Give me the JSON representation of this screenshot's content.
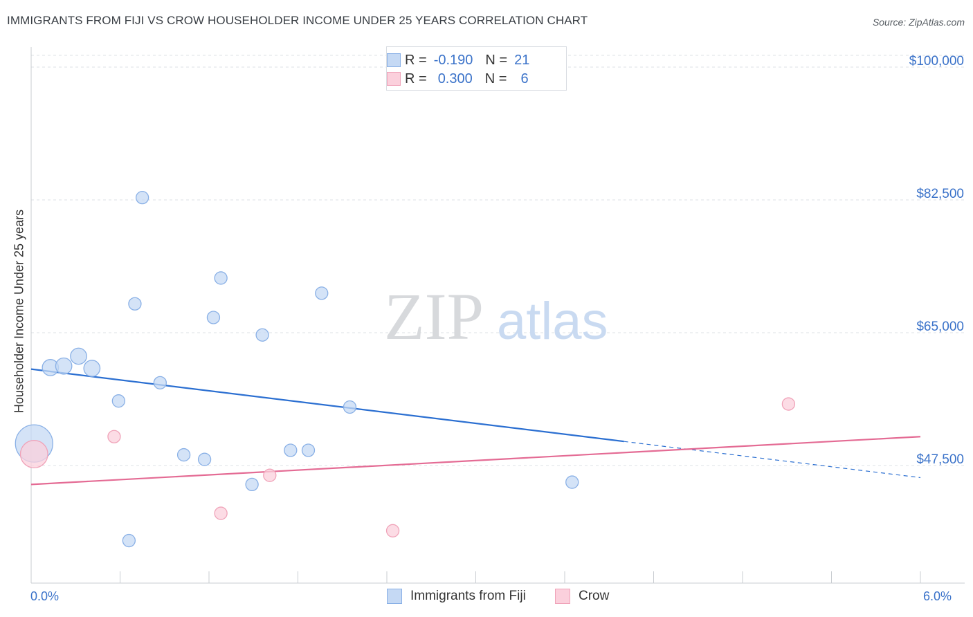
{
  "header": {
    "title": "IMMIGRANTS FROM FIJI VS CROW HOUSEHOLDER INCOME UNDER 25 YEARS CORRELATION CHART",
    "source": "Source: ZipAtlas.com"
  },
  "watermark": {
    "zip": "ZIP",
    "atlas": "atlas"
  },
  "legend": {
    "rows": [
      {
        "r_label": "R =",
        "r_value": "-0.190",
        "n_label": "N =",
        "n_value": "21"
      },
      {
        "r_label": "R =",
        "r_value": "0.300",
        "n_label": "N =",
        "n_value": "6"
      }
    ]
  },
  "colors": {
    "fiji_fill": "#c5d9f4",
    "fiji_stroke": "#89b0e6",
    "fiji_line": "#2b6fd1",
    "crow_fill": "#fbd0dc",
    "crow_stroke": "#f0a3b9",
    "crow_line": "#e46b94",
    "axis_text": "#3a72c9",
    "grid": "#dde0e4"
  },
  "chart_data": {
    "type": "scatter",
    "title": "IMMIGRANTS FROM FIJI VS CROW HOUSEHOLDER INCOME UNDER 25 YEARS CORRELATION CHART",
    "xlabel": "",
    "ylabel": "Householder Income Under 25 years",
    "xlim": [
      0.0,
      6.0
    ],
    "ylim": [
      32000,
      102000
    ],
    "x_tick_labels": [
      "0.0%",
      "6.0%"
    ],
    "y_ticks": [
      47500,
      65000,
      82500,
      100000
    ],
    "y_tick_labels": [
      "$47,500",
      "$65,000",
      "$82,500",
      "$100,000"
    ],
    "grid": true,
    "legend_position": "bottom",
    "series": [
      {
        "name": "Immigrants from Fiji",
        "points": [
          {
            "x": 0.02,
            "y": 50400,
            "size": 3
          },
          {
            "x": 0.13,
            "y": 60400,
            "size": 1.3
          },
          {
            "x": 0.22,
            "y": 60600,
            "size": 1.3
          },
          {
            "x": 0.32,
            "y": 61900,
            "size": 1.3
          },
          {
            "x": 0.41,
            "y": 60300,
            "size": 1.3
          },
          {
            "x": 0.59,
            "y": 56000,
            "size": 1
          },
          {
            "x": 0.66,
            "y": 37600,
            "size": 1
          },
          {
            "x": 0.7,
            "y": 68800,
            "size": 1
          },
          {
            "x": 0.75,
            "y": 82800,
            "size": 1
          },
          {
            "x": 0.87,
            "y": 58400,
            "size": 1
          },
          {
            "x": 1.03,
            "y": 48900,
            "size": 1
          },
          {
            "x": 1.17,
            "y": 48300,
            "size": 1
          },
          {
            "x": 1.23,
            "y": 67000,
            "size": 1
          },
          {
            "x": 1.28,
            "y": 72200,
            "size": 1
          },
          {
            "x": 1.49,
            "y": 45000,
            "size": 1
          },
          {
            "x": 1.56,
            "y": 64700,
            "size": 1
          },
          {
            "x": 1.75,
            "y": 49500,
            "size": 1
          },
          {
            "x": 1.87,
            "y": 49500,
            "size": 1
          },
          {
            "x": 1.96,
            "y": 70200,
            "size": 1
          },
          {
            "x": 2.15,
            "y": 55200,
            "size": 1
          },
          {
            "x": 3.65,
            "y": 45300,
            "size": 1
          }
        ],
        "trend": {
          "x0": 0.0,
          "y0": 60200,
          "x1": 6.0,
          "y1": 45900,
          "solid_until_x": 4.0
        }
      },
      {
        "name": "Crow",
        "points": [
          {
            "x": 0.02,
            "y": 49000,
            "size": 2.2
          },
          {
            "x": 0.56,
            "y": 51300,
            "size": 1
          },
          {
            "x": 1.28,
            "y": 41200,
            "size": 1
          },
          {
            "x": 1.61,
            "y": 46200,
            "size": 1
          },
          {
            "x": 2.44,
            "y": 38900,
            "size": 1
          },
          {
            "x": 5.11,
            "y": 55600,
            "size": 1
          }
        ],
        "trend": {
          "x0": 0.0,
          "y0": 45000,
          "x1": 6.0,
          "y1": 51300,
          "solid_until_x": 6.0
        }
      }
    ]
  }
}
